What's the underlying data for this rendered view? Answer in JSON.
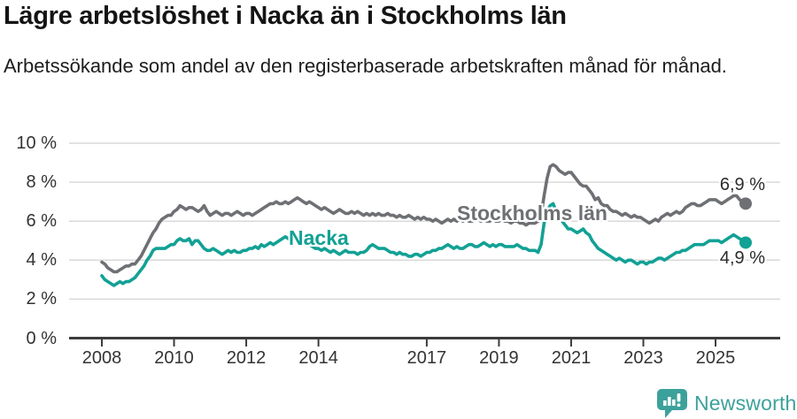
{
  "header": {
    "title": "Lägre arbetslöshet i Nacka än i Stockholms län",
    "subtitle": "Arbetssökande som andel av den registerbaserade arbetskraften månad för månad."
  },
  "chart_data": {
    "type": "line",
    "title": "Lägre arbetslöshet i Nacka än i Stockholms län",
    "subtitle": "Arbetssökande som andel av den registerbaserade arbetskraften månad för månad.",
    "unit": "%",
    "frequency": "monthly",
    "x_start": "2008-01",
    "x_end": "2025-11",
    "ylim": [
      0,
      10
    ],
    "grid": "horizontal",
    "legend_position": "on-line-labels",
    "colors": {
      "grid": "#d9d9d9",
      "axis": "#3c3c3c",
      "tick_text": "#333333"
    },
    "y_ticks": [
      {
        "value": 0,
        "label": "0 %"
      },
      {
        "value": 2,
        "label": "2 %"
      },
      {
        "value": 4,
        "label": "4 %"
      },
      {
        "value": 6,
        "label": "6 %"
      },
      {
        "value": 8,
        "label": "8 %"
      },
      {
        "value": 10,
        "label": "10 %"
      }
    ],
    "x_ticks": [
      {
        "value": 2008,
        "label": "2008"
      },
      {
        "value": 2010,
        "label": "2010"
      },
      {
        "value": 2012,
        "label": "2012"
      },
      {
        "value": 2014,
        "label": "2014"
      },
      {
        "value": 2017,
        "label": "2017"
      },
      {
        "value": 2019,
        "label": "2019"
      },
      {
        "value": 2021,
        "label": "2021"
      },
      {
        "value": 2023,
        "label": "2023"
      },
      {
        "value": 2025,
        "label": "2025"
      }
    ],
    "series": [
      {
        "name": "Stockholms län",
        "color": "#6e7074",
        "end_label": "6,9 %",
        "end_value": 6.9,
        "values": [
          3.9,
          3.8,
          3.6,
          3.5,
          3.4,
          3.4,
          3.5,
          3.6,
          3.7,
          3.7,
          3.8,
          3.8,
          4.0,
          4.2,
          4.5,
          4.8,
          5.1,
          5.4,
          5.6,
          5.9,
          6.1,
          6.2,
          6.3,
          6.3,
          6.5,
          6.6,
          6.8,
          6.7,
          6.6,
          6.7,
          6.7,
          6.6,
          6.5,
          6.6,
          6.8,
          6.5,
          6.3,
          6.4,
          6.5,
          6.4,
          6.3,
          6.4,
          6.4,
          6.3,
          6.4,
          6.5,
          6.4,
          6.3,
          6.4,
          6.4,
          6.3,
          6.4,
          6.5,
          6.6,
          6.7,
          6.8,
          6.9,
          6.9,
          7.0,
          6.9,
          6.9,
          7.0,
          6.9,
          7.0,
          7.1,
          7.2,
          7.1,
          7.0,
          6.9,
          7.0,
          6.9,
          6.8,
          6.7,
          6.6,
          6.7,
          6.6,
          6.5,
          6.4,
          6.5,
          6.6,
          6.5,
          6.4,
          6.4,
          6.5,
          6.4,
          6.5,
          6.4,
          6.3,
          6.4,
          6.3,
          6.4,
          6.3,
          6.4,
          6.3,
          6.3,
          6.4,
          6.3,
          6.3,
          6.2,
          6.3,
          6.2,
          6.2,
          6.3,
          6.2,
          6.1,
          6.2,
          6.1,
          6.2,
          6.1,
          6.1,
          6.0,
          6.1,
          6.0,
          5.9,
          6.0,
          6.1,
          6.0,
          6.1,
          6.0,
          6.1,
          6.0,
          6.1,
          6.0,
          6.0,
          6.1,
          6.1,
          6.0,
          6.1,
          6.0,
          6.0,
          6.1,
          6.0,
          6.0,
          6.1,
          6.0,
          6.0,
          5.9,
          6.0,
          6.0,
          5.9,
          5.9,
          5.8,
          5.9,
          5.9,
          5.9,
          6.0,
          6.3,
          7.3,
          8.2,
          8.8,
          8.9,
          8.8,
          8.6,
          8.5,
          8.4,
          8.5,
          8.5,
          8.3,
          8.1,
          7.9,
          7.8,
          7.8,
          7.6,
          7.4,
          7.1,
          7.2,
          6.9,
          6.8,
          6.8,
          6.6,
          6.5,
          6.5,
          6.4,
          6.3,
          6.4,
          6.3,
          6.2,
          6.3,
          6.2,
          6.2,
          6.1,
          6.0,
          5.9,
          6.0,
          6.1,
          6.0,
          6.2,
          6.3,
          6.4,
          6.3,
          6.4,
          6.5,
          6.4,
          6.5,
          6.7,
          6.8,
          6.9,
          6.9,
          6.8,
          6.8,
          6.9,
          7.0,
          7.1,
          7.1,
          7.1,
          7.0,
          6.9,
          7.0,
          7.1,
          7.2,
          7.3,
          7.3,
          7.1,
          7.0,
          6.9
        ]
      },
      {
        "name": "Nacka",
        "color": "#12a195",
        "end_label": "4,9 %",
        "end_value": 4.9,
        "values": [
          3.2,
          3.0,
          2.9,
          2.8,
          2.7,
          2.8,
          2.9,
          2.8,
          2.9,
          2.9,
          3.0,
          3.1,
          3.3,
          3.5,
          3.7,
          4.0,
          4.2,
          4.5,
          4.6,
          4.6,
          4.6,
          4.6,
          4.7,
          4.8,
          4.8,
          5.0,
          5.1,
          5.0,
          5.0,
          5.1,
          4.8,
          5.0,
          5.0,
          4.8,
          4.6,
          4.5,
          4.5,
          4.6,
          4.5,
          4.4,
          4.3,
          4.4,
          4.5,
          4.4,
          4.5,
          4.4,
          4.4,
          4.5,
          4.5,
          4.6,
          4.6,
          4.7,
          4.6,
          4.8,
          4.7,
          4.8,
          4.9,
          4.8,
          4.9,
          5.0,
          5.1,
          5.2,
          5.1,
          5.0,
          5.1,
          5.0,
          4.9,
          5.0,
          4.9,
          4.8,
          4.7,
          4.6,
          4.6,
          4.5,
          4.6,
          4.5,
          4.4,
          4.5,
          4.4,
          4.3,
          4.4,
          4.5,
          4.4,
          4.4,
          4.4,
          4.3,
          4.4,
          4.4,
          4.5,
          4.7,
          4.8,
          4.7,
          4.6,
          4.6,
          4.6,
          4.5,
          4.4,
          4.4,
          4.3,
          4.4,
          4.3,
          4.3,
          4.2,
          4.2,
          4.3,
          4.3,
          4.2,
          4.3,
          4.4,
          4.4,
          4.5,
          4.5,
          4.6,
          4.6,
          4.7,
          4.8,
          4.7,
          4.6,
          4.7,
          4.6,
          4.6,
          4.7,
          4.8,
          4.8,
          4.7,
          4.7,
          4.8,
          4.9,
          4.8,
          4.7,
          4.8,
          4.7,
          4.8,
          4.8,
          4.7,
          4.7,
          4.7,
          4.7,
          4.8,
          4.7,
          4.6,
          4.6,
          4.5,
          4.5,
          4.5,
          4.4,
          4.8,
          5.9,
          6.5,
          6.8,
          6.9,
          6.5,
          6.2,
          6.0,
          5.8,
          5.6,
          5.6,
          5.5,
          5.4,
          5.5,
          5.6,
          5.4,
          5.3,
          5.0,
          4.8,
          4.6,
          4.5,
          4.4,
          4.3,
          4.2,
          4.1,
          4.0,
          4.1,
          4.0,
          3.9,
          4.0,
          4.0,
          3.9,
          3.8,
          3.9,
          3.9,
          3.8,
          3.9,
          3.9,
          4.0,
          4.1,
          4.1,
          4.0,
          4.1,
          4.2,
          4.3,
          4.4,
          4.4,
          4.5,
          4.5,
          4.6,
          4.7,
          4.8,
          4.8,
          4.8,
          4.8,
          4.9,
          5.0,
          5.0,
          5.0,
          5.0,
          4.9,
          5.0,
          5.1,
          5.2,
          5.3,
          5.2,
          5.1,
          5.0,
          4.9
        ]
      }
    ]
  },
  "footer": {
    "brand": "Newsworthy",
    "logo_color": "#3da19b"
  }
}
